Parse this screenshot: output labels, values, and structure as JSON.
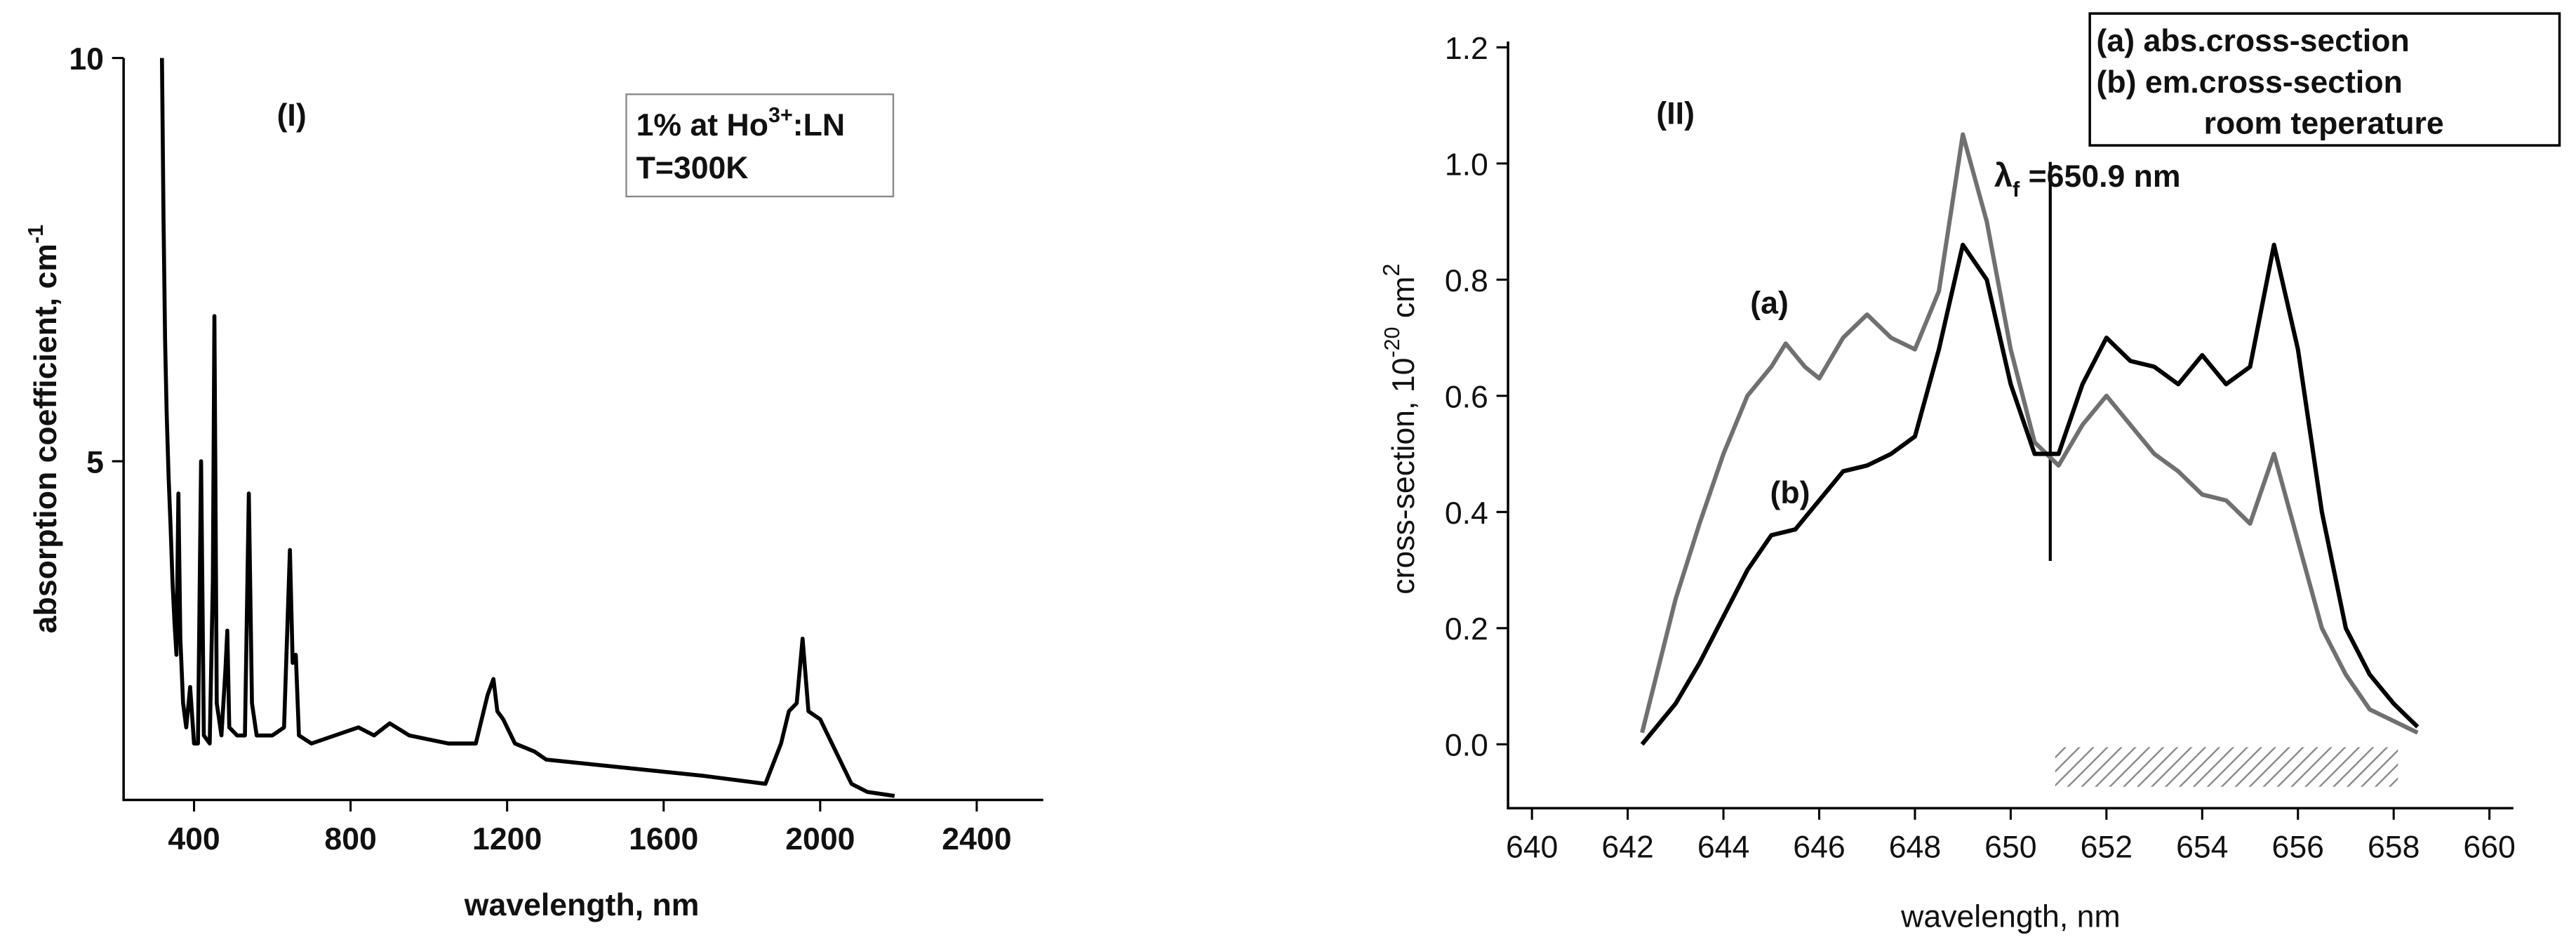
{
  "chart_data": [
    {
      "type": "line",
      "panel": "(I)",
      "xlabel": "wavelength, nm",
      "ylabel": {
        "text": "absorption coefficient, cm",
        "sup": "-1"
      },
      "annotation": {
        "line1": "1% at Ho",
        "sup": "3+",
        "line1b": ":LN",
        "line2": "T=300K"
      },
      "color": "#000000",
      "x": [
        318,
        322,
        326,
        330,
        335,
        340,
        345,
        350,
        355,
        360,
        365,
        372,
        380,
        390,
        400,
        410,
        418,
        425,
        440,
        448,
        452,
        458,
        470,
        480,
        485,
        490,
        510,
        530,
        540,
        548,
        560,
        600,
        630,
        645,
        652,
        660,
        668,
        700,
        760,
        820,
        860,
        900,
        950,
        1050,
        1120,
        1150,
        1165,
        1175,
        1190,
        1220,
        1270,
        1300,
        1500,
        1700,
        1860,
        1900,
        1920,
        1940,
        1955,
        1970,
        2000,
        2040,
        2080,
        2120,
        2190
      ],
      "values": [
        10,
        8,
        6.5,
        5.6,
        4.8,
        4.2,
        3.5,
        3.0,
        2.6,
        4.6,
        2.8,
        2.0,
        1.7,
        2.2,
        1.5,
        1.5,
        5.0,
        1.6,
        1.5,
        3.5,
        6.8,
        2.0,
        1.6,
        2.4,
        2.9,
        1.7,
        1.6,
        1.6,
        4.6,
        2.0,
        1.6,
        1.6,
        1.7,
        3.9,
        2.5,
        2.6,
        1.6,
        1.5,
        1.6,
        1.7,
        1.6,
        1.75,
        1.6,
        1.5,
        1.5,
        2.1,
        2.3,
        1.9,
        1.8,
        1.5,
        1.4,
        1.3,
        1.2,
        1.1,
        1.0,
        1.5,
        1.9,
        2.0,
        2.8,
        1.9,
        1.8,
        1.4,
        1.0,
        0.9,
        0.85
      ],
      "xlim": [
        220,
        2570
      ],
      "ylim": [
        0.8,
        10
      ],
      "xticks": [
        400,
        800,
        1200,
        1600,
        2000,
        2400
      ],
      "yticks": [
        5,
        10
      ]
    },
    {
      "type": "line",
      "panel": "(II)",
      "xlabel": "wavelength, nm",
      "ylabel": {
        "text": "cross-section, 10",
        "sup": "-20",
        "text2": " cm",
        "sup2": "2"
      },
      "legend_note": "room teperature",
      "marker_label": {
        "symbol": "λ",
        "sub": "f",
        "text": " =650.9 nm"
      },
      "curve_labels": [
        "(a)",
        "(b)"
      ],
      "series": [
        {
          "name": "(a) abs.cross-section",
          "color": "#707070",
          "x": [
            642.3,
            643,
            643.5,
            644,
            644.5,
            645,
            645.3,
            645.7,
            646,
            646.5,
            647,
            647.5,
            648,
            648.5,
            649,
            649.5,
            650,
            650.5,
            651,
            651.5,
            652,
            652.5,
            653,
            653.5,
            654,
            654.5,
            655,
            655.5,
            656,
            656.5,
            657,
            657.5,
            658,
            658.5
          ],
          "values": [
            0.02,
            0.25,
            0.38,
            0.5,
            0.6,
            0.65,
            0.69,
            0.65,
            0.63,
            0.7,
            0.74,
            0.7,
            0.68,
            0.78,
            1.05,
            0.9,
            0.68,
            0.52,
            0.48,
            0.55,
            0.6,
            0.55,
            0.5,
            0.47,
            0.43,
            0.42,
            0.38,
            0.5,
            0.35,
            0.2,
            0.12,
            0.06,
            0.04,
            0.02
          ]
        },
        {
          "name": "(b) em.cross-section",
          "color": "#000000",
          "x": [
            642.3,
            643,
            643.5,
            644,
            644.5,
            645,
            645.5,
            646,
            646.5,
            647,
            647.5,
            648,
            648.5,
            649,
            649.5,
            650,
            650.5,
            651,
            651.5,
            652,
            652.5,
            653,
            653.5,
            654,
            654.5,
            655,
            655.5,
            656,
            656.5,
            657,
            657.5,
            658,
            658.5
          ],
          "values": [
            0.0,
            0.07,
            0.14,
            0.22,
            0.3,
            0.36,
            0.37,
            0.42,
            0.47,
            0.48,
            0.5,
            0.53,
            0.68,
            0.86,
            0.8,
            0.62,
            0.5,
            0.5,
            0.62,
            0.7,
            0.66,
            0.65,
            0.62,
            0.67,
            0.62,
            0.65,
            0.86,
            0.68,
            0.4,
            0.2,
            0.12,
            0.07,
            0.03
          ]
        }
      ],
      "xlim": [
        639.5,
        660.5
      ],
      "ylim": [
        -0.11,
        1.21
      ],
      "xticks": [
        640,
        642,
        644,
        646,
        648,
        650,
        652,
        654,
        656,
        658,
        660
      ],
      "yticks": [
        {
          "value": 0,
          "label": "0.0"
        },
        0.2,
        0.4,
        0.6,
        0.8,
        {
          "value": 1,
          "label": "1.0"
        },
        1.2
      ]
    }
  ]
}
